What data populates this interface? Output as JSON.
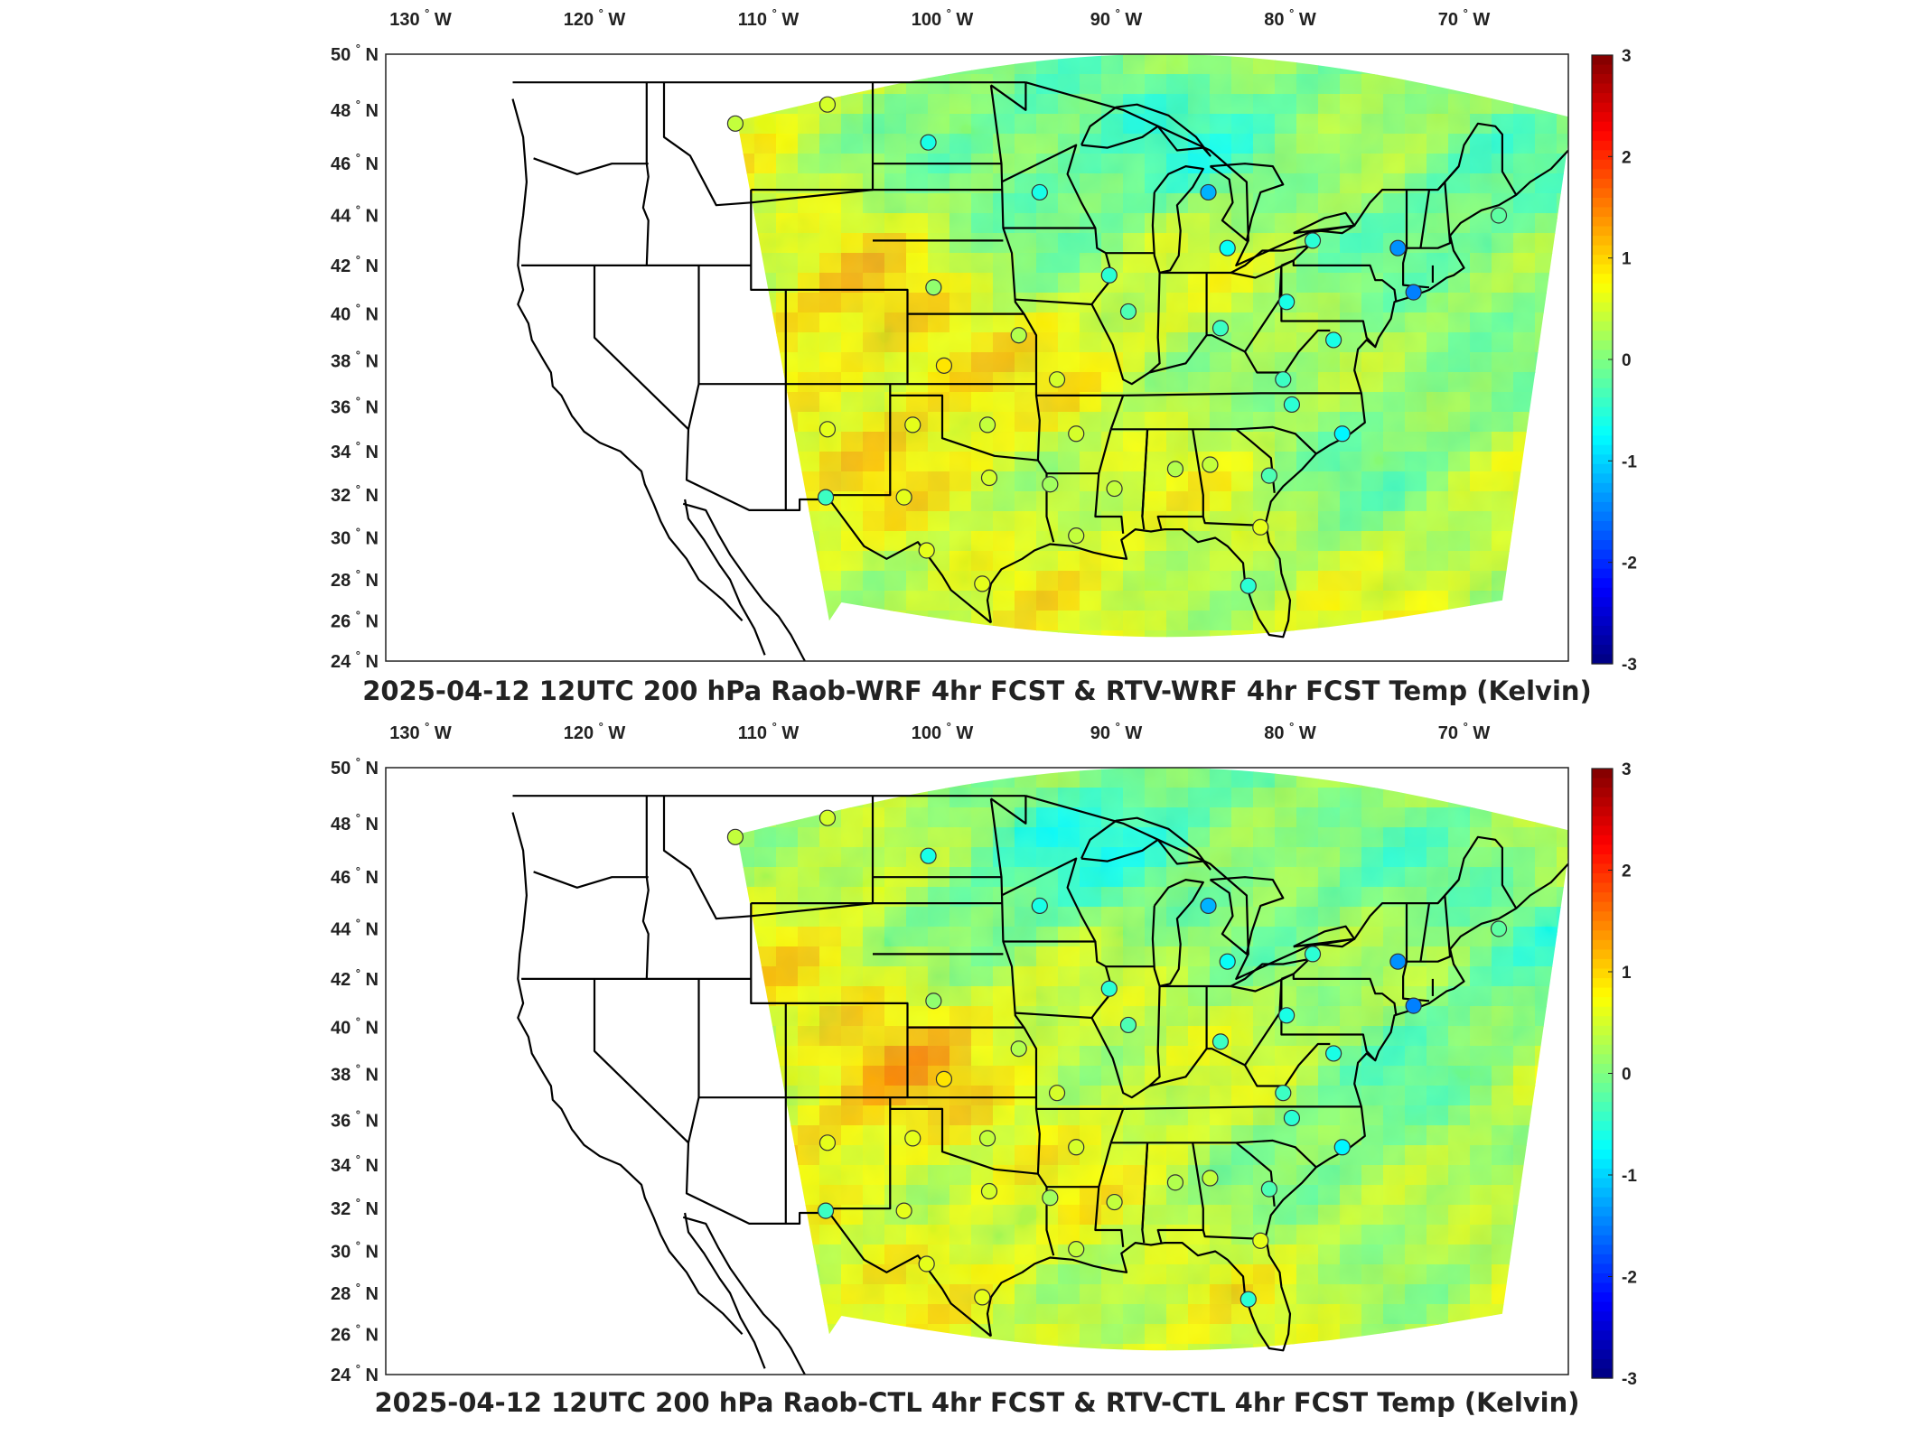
{
  "panels": [
    {
      "title": "2025-04-12 12UTC 200 hPa Raob-WRF 4hr FCST & RTV-WRF 4hr FCST Temp (Kelvin)",
      "seed": 11
    },
    {
      "title": "2025-04-12 12UTC 200 hPa Raob-CTL 4hr FCST & RTV-CTL 4hr FCST Temp (Kelvin)",
      "seed": 29
    }
  ],
  "axes": {
    "lon_ticks": [
      {
        "value": -130,
        "num": "130",
        "hemi": "W"
      },
      {
        "value": -120,
        "num": "120",
        "hemi": "W"
      },
      {
        "value": -110,
        "num": "110",
        "hemi": "W"
      },
      {
        "value": -100,
        "num": "100",
        "hemi": "W"
      },
      {
        "value": -90,
        "num": "90",
        "hemi": "W"
      },
      {
        "value": -80,
        "num": "80",
        "hemi": "W"
      },
      {
        "value": -70,
        "num": "70",
        "hemi": "W"
      }
    ],
    "lat_ticks": [
      {
        "value": 50,
        "num": "50",
        "hemi": "N"
      },
      {
        "value": 48,
        "num": "48",
        "hemi": "N"
      },
      {
        "value": 46,
        "num": "46",
        "hemi": "N"
      },
      {
        "value": 44,
        "num": "44",
        "hemi": "N"
      },
      {
        "value": 42,
        "num": "42",
        "hemi": "N"
      },
      {
        "value": 40,
        "num": "40",
        "hemi": "N"
      },
      {
        "value": 38,
        "num": "38",
        "hemi": "N"
      },
      {
        "value": 36,
        "num": "36",
        "hemi": "N"
      },
      {
        "value": 34,
        "num": "34",
        "hemi": "N"
      },
      {
        "value": 32,
        "num": "32",
        "hemi": "N"
      },
      {
        "value": 30,
        "num": "30",
        "hemi": "N"
      },
      {
        "value": 28,
        "num": "28",
        "hemi": "N"
      },
      {
        "value": 26,
        "num": "26",
        "hemi": "N"
      },
      {
        "value": 24,
        "num": "24",
        "hemi": "N"
      }
    ],
    "lon_range": [
      -132,
      -64
    ],
    "lat_range": [
      24,
      50
    ],
    "degree_symbol": "°"
  },
  "colorbar": {
    "colormap": "jet",
    "range": [
      -3,
      3
    ],
    "ticks": [
      "3",
      "2",
      "1",
      "0",
      "-1",
      "-2",
      "-3"
    ]
  },
  "stations": [
    {
      "lon": -111.9,
      "lat": 47.5,
      "value": 0.4
    },
    {
      "lon": -106.6,
      "lat": 48.2,
      "value": 0.5
    },
    {
      "lon": -100.8,
      "lat": 46.8,
      "value": -0.6
    },
    {
      "lon": -94.4,
      "lat": 44.9,
      "value": -0.6
    },
    {
      "lon": -84.7,
      "lat": 44.9,
      "value": -1.2
    },
    {
      "lon": -83.6,
      "lat": 42.7,
      "value": -0.7
    },
    {
      "lon": -78.7,
      "lat": 43.0,
      "value": -0.5
    },
    {
      "lon": -73.8,
      "lat": 42.7,
      "value": -1.4
    },
    {
      "lon": -68.0,
      "lat": 44.0,
      "value": -0.2
    },
    {
      "lon": -72.9,
      "lat": 40.9,
      "value": -1.5
    },
    {
      "lon": -90.4,
      "lat": 41.6,
      "value": -0.5
    },
    {
      "lon": -100.5,
      "lat": 41.1,
      "value": 0.1
    },
    {
      "lon": -89.3,
      "lat": 40.1,
      "value": -0.3
    },
    {
      "lon": -80.2,
      "lat": 40.5,
      "value": -0.6
    },
    {
      "lon": -77.5,
      "lat": 38.9,
      "value": -0.6
    },
    {
      "lon": -84.0,
      "lat": 39.4,
      "value": -0.4
    },
    {
      "lon": -95.6,
      "lat": 39.1,
      "value": 0.3
    },
    {
      "lon": -99.9,
      "lat": 37.8,
      "value": 0.9
    },
    {
      "lon": -93.4,
      "lat": 37.2,
      "value": 0.5
    },
    {
      "lon": -80.4,
      "lat": 37.2,
      "value": -0.4
    },
    {
      "lon": -79.9,
      "lat": 36.1,
      "value": -0.5
    },
    {
      "lon": -106.6,
      "lat": 35.0,
      "value": 0.6
    },
    {
      "lon": -101.7,
      "lat": 35.2,
      "value": 0.6
    },
    {
      "lon": -97.4,
      "lat": 35.2,
      "value": 0.4
    },
    {
      "lon": -92.3,
      "lat": 34.8,
      "value": 0.5
    },
    {
      "lon": -77.0,
      "lat": 34.8,
      "value": -0.8
    },
    {
      "lon": -86.6,
      "lat": 33.2,
      "value": 0.3
    },
    {
      "lon": -84.6,
      "lat": 33.4,
      "value": 0.4
    },
    {
      "lon": -97.3,
      "lat": 32.8,
      "value": 0.5
    },
    {
      "lon": -93.8,
      "lat": 32.5,
      "value": 0.2
    },
    {
      "lon": -90.1,
      "lat": 32.3,
      "value": 0.4
    },
    {
      "lon": -81.2,
      "lat": 32.9,
      "value": -0.3
    },
    {
      "lon": -106.7,
      "lat": 31.9,
      "value": -0.4
    },
    {
      "lon": -102.2,
      "lat": 31.9,
      "value": 0.6
    },
    {
      "lon": -92.3,
      "lat": 30.1,
      "value": 0.4
    },
    {
      "lon": -81.7,
      "lat": 30.5,
      "value": 0.6
    },
    {
      "lon": -100.9,
      "lat": 29.4,
      "value": 0.6
    },
    {
      "lon": -97.7,
      "lat": 27.8,
      "value": 0.6
    },
    {
      "lon": -82.4,
      "lat": 27.7,
      "value": -0.5
    }
  ]
}
